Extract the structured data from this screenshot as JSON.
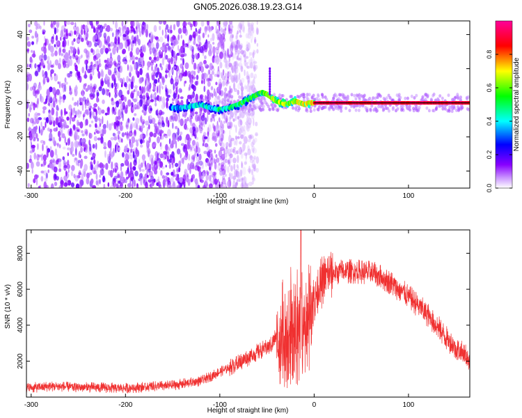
{
  "title": "GN05.2026.038.19.23.G14",
  "chart_data": [
    {
      "type": "heatmap",
      "name": "spectrogram",
      "xlabel": "Height of straight line (km)",
      "ylabel": "Frequency (Hz)",
      "xlim": [
        -305,
        165
      ],
      "ylim": [
        -50,
        48
      ],
      "xticks": [
        -300,
        -200,
        -100,
        0,
        100
      ],
      "yticks": [
        -40,
        -20,
        0,
        20,
        40
      ],
      "colorbar": {
        "label": "Normalized spectral amplitude",
        "range": [
          0.0,
          1.0
        ],
        "ticks": [
          0.0,
          0.2,
          0.4,
          0.6,
          0.8
        ],
        "colormap": [
          "#ffffff",
          "#8800ff",
          "#0000ff",
          "#00ffff",
          "#00ff00",
          "#ffff00",
          "#ff0000",
          "#ff00aa"
        ]
      },
      "centerline": {
        "x": [
          -150,
          -140,
          -130,
          -120,
          -110,
          -100,
          -90,
          -80,
          -70,
          -60,
          -55,
          -50,
          -45,
          -40,
          -35,
          -30,
          -25,
          -20,
          -15,
          -10,
          -5,
          0,
          10,
          40,
          80,
          120,
          165
        ],
        "y": [
          -3,
          -3,
          -2,
          -1,
          -3,
          -4,
          -3,
          -1,
          2,
          5,
          6,
          5,
          3,
          1,
          0,
          -1,
          0,
          1,
          0,
          -1,
          0,
          0,
          0,
          0,
          0,
          0,
          0
        ]
      },
      "noise_extent_km": [
        -305,
        -70
      ],
      "spike": {
        "x": -47,
        "y_range": [
          5,
          20
        ]
      }
    },
    {
      "type": "line",
      "name": "snr",
      "xlabel": "Height of straight line (km)",
      "ylabel": "SNR (10 * v/v)",
      "xlim": [
        -305,
        165
      ],
      "ylim": [
        0,
        9300
      ],
      "xticks": [
        -300,
        -200,
        -100,
        0,
        100
      ],
      "yticks": [
        2000,
        4000,
        6000,
        8000
      ],
      "color": "#f03030",
      "envelope": {
        "x": [
          -305,
          -280,
          -250,
          -200,
          -150,
          -120,
          -100,
          -80,
          -60,
          -45,
          -35,
          -30,
          -25,
          -20,
          -10,
          0,
          10,
          20,
          30,
          40,
          50,
          60,
          70,
          80,
          90,
          100,
          110,
          120,
          130,
          140,
          150,
          165
        ],
        "y": [
          500,
          600,
          550,
          500,
          650,
          900,
          1400,
          1900,
          2500,
          2900,
          4000,
          4500,
          5000,
          4800,
          4600,
          5500,
          6600,
          6900,
          7000,
          7000,
          6950,
          6900,
          6700,
          6400,
          6000,
          5600,
          5100,
          4600,
          4000,
          3300,
          2700,
          2100
        ]
      },
      "noise_amplitude": [
        300,
        900
      ],
      "peak": {
        "x": -14,
        "y": 9300
      }
    }
  ]
}
